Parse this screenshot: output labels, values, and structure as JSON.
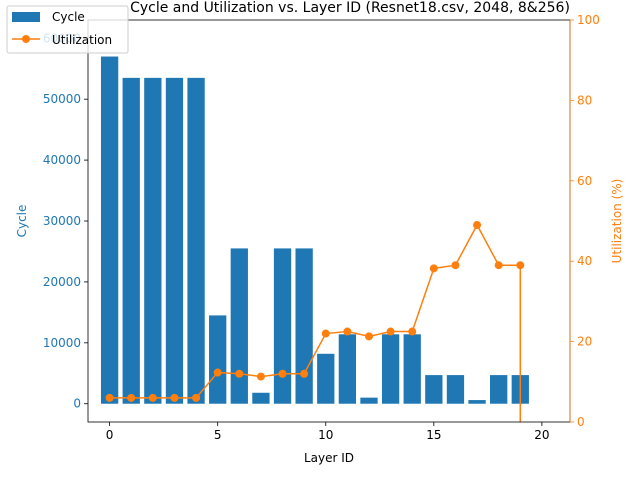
{
  "chart_data": {
    "type": "bar+line",
    "title": "Cycle and Utilization vs. Layer ID (Resnet18.csv, 2048, 8&256)",
    "xlabel": "Layer ID",
    "ylabel_left": "Cycle",
    "ylabel_right": "Utilization (%)",
    "xlim": [
      -1,
      21.3
    ],
    "xticks": [
      0,
      5,
      10,
      15,
      20
    ],
    "ylim_left": [
      -3000,
      63000
    ],
    "yticks_left": [
      0,
      10000,
      20000,
      30000,
      40000,
      50000,
      60000
    ],
    "ylim_right": [
      0,
      100
    ],
    "yticks_right": [
      0,
      20,
      40,
      60,
      80,
      100
    ],
    "legend_position": "top-left",
    "colors": {
      "bar": "#1f77b4",
      "line": "#ff7f0e"
    },
    "bars": {
      "name": "Cycle",
      "x": [
        0,
        1,
        2,
        3,
        4,
        5,
        6,
        7,
        8,
        9,
        10,
        11,
        12,
        13,
        14,
        15,
        16,
        17,
        18,
        19
      ],
      "values": [
        57000,
        53500,
        53500,
        53500,
        53500,
        14500,
        25500,
        1800,
        25500,
        25500,
        8200,
        11400,
        1000,
        11400,
        11400,
        4700,
        4700,
        600,
        4700,
        4700
      ]
    },
    "line": {
      "name": "Utilization",
      "x": [
        0,
        1,
        2,
        3,
        4,
        5,
        6,
        7,
        8,
        9,
        10,
        11,
        12,
        13,
        14,
        15,
        16,
        17,
        18,
        19,
        19
      ],
      "values": [
        6,
        6,
        6,
        6,
        6,
        12.3,
        12,
        11.3,
        12,
        12,
        22,
        22.5,
        21.3,
        22.5,
        22.5,
        38.2,
        39,
        49,
        39,
        39,
        0
      ]
    }
  }
}
